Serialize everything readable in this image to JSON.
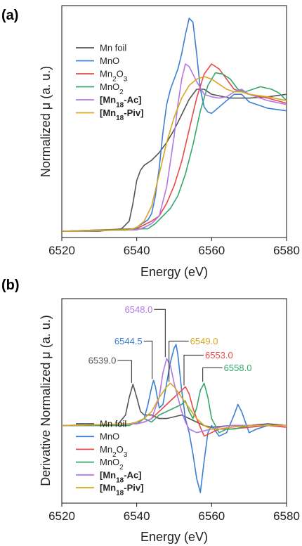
{
  "chart_data": [
    {
      "panel_label": "(a)",
      "type": "line",
      "xlabel": "Energy (eV)",
      "ylabel": "Normalized μ (a. u.)",
      "xlim": [
        6520,
        6580
      ],
      "ylim": [
        -0.05,
        1.78
      ],
      "xticks": [
        6520,
        6540,
        6560,
        6580
      ],
      "legend_position": "top-left",
      "series": [
        {
          "name": "Mn foil",
          "color": "#555555",
          "x": [
            6520,
            6530,
            6536,
            6538,
            6539,
            6540,
            6541,
            6542,
            6544,
            6546,
            6548,
            6550,
            6552,
            6554,
            6556,
            6558,
            6560,
            6565,
            6570,
            6575,
            6580
          ],
          "y": [
            0.0,
            0.0,
            0.02,
            0.08,
            0.22,
            0.4,
            0.48,
            0.52,
            0.56,
            0.62,
            0.7,
            0.8,
            0.92,
            1.04,
            1.12,
            1.12,
            1.08,
            1.05,
            1.05,
            1.06,
            1.08
          ]
        },
        {
          "name": "MnO",
          "color": "#3a7fd5",
          "x": [
            6520,
            6538,
            6540,
            6541,
            6542,
            6543,
            6544,
            6545,
            6546,
            6547,
            6548,
            6549,
            6550,
            6551,
            6552,
            6553,
            6554,
            6555,
            6556,
            6557,
            6558,
            6559,
            6560,
            6562,
            6564,
            6566,
            6568,
            6570,
            6575,
            6580
          ],
          "y": [
            0.0,
            0.01,
            0.03,
            0.05,
            0.07,
            0.09,
            0.14,
            0.28,
            0.5,
            0.78,
            1.0,
            1.12,
            1.2,
            1.28,
            1.4,
            1.55,
            1.68,
            1.65,
            1.4,
            1.12,
            0.98,
            0.94,
            0.93,
            0.98,
            1.03,
            1.08,
            1.08,
            1.02,
            0.97,
            0.95
          ]
        },
        {
          "name": "Mn2O3",
          "color": "#e84a4a",
          "x": [
            6520,
            6540,
            6542,
            6544,
            6546,
            6548,
            6550,
            6552,
            6554,
            6556,
            6558,
            6560,
            6562,
            6564,
            6566,
            6568,
            6570,
            6575,
            6580
          ],
          "y": [
            0.0,
            0.02,
            0.05,
            0.08,
            0.12,
            0.22,
            0.36,
            0.55,
            0.8,
            1.05,
            1.24,
            1.32,
            1.28,
            1.2,
            1.12,
            1.1,
            1.08,
            1.05,
            1.01
          ]
        },
        {
          "name": "MnO2",
          "color": "#34a86c",
          "x": [
            6520,
            6543,
            6545,
            6547,
            6549,
            6551,
            6553,
            6555,
            6557,
            6559,
            6561,
            6563,
            6565,
            6567,
            6569,
            6571,
            6573,
            6576,
            6578,
            6580
          ],
          "y": [
            0.0,
            0.02,
            0.06,
            0.12,
            0.18,
            0.28,
            0.45,
            0.68,
            0.95,
            1.15,
            1.25,
            1.24,
            1.2,
            1.12,
            1.1,
            1.12,
            1.14,
            1.12,
            1.09,
            1.03
          ]
        },
        {
          "name": "[Mn18-Ac]",
          "color": "#b377e6",
          "x": [
            6520,
            6540,
            6542,
            6544,
            6546,
            6548,
            6550,
            6551,
            6552,
            6553,
            6554,
            6556,
            6558,
            6560,
            6562,
            6564,
            6566,
            6568,
            6570,
            6575,
            6580
          ],
          "y": [
            0.0,
            0.01,
            0.03,
            0.06,
            0.12,
            0.35,
            0.75,
            1.0,
            1.2,
            1.32,
            1.3,
            1.18,
            1.08,
            1.06,
            1.05,
            1.06,
            1.1,
            1.12,
            1.08,
            1.03,
            1.0
          ]
        },
        {
          "name": "[Mn18-Piv]",
          "color": "#d9a520",
          "x": [
            6520,
            6538,
            6540,
            6542,
            6544,
            6546,
            6548,
            6550,
            6552,
            6554,
            6556,
            6558,
            6560,
            6562,
            6564,
            6566,
            6568,
            6570,
            6575,
            6580
          ],
          "y": [
            0.0,
            0.01,
            0.03,
            0.08,
            0.2,
            0.45,
            0.7,
            0.9,
            1.05,
            1.15,
            1.2,
            1.22,
            1.2,
            1.16,
            1.12,
            1.1,
            1.1,
            1.08,
            1.06,
            1.03
          ]
        }
      ]
    },
    {
      "panel_label": "(b)",
      "type": "line",
      "xlabel": "Energy (eV)",
      "ylabel": "Derivative Normalized μ (a. u.)",
      "xlim": [
        6520,
        6580
      ],
      "ylim": [
        -0.22,
        0.36
      ],
      "xticks": [
        6520,
        6540,
        6560,
        6580
      ],
      "legend_position": "bottom-left",
      "annotations": [
        {
          "text": "6539.0",
          "color": "#555555",
          "x": 6539.0,
          "y": 0.117
        },
        {
          "text": "6544.5",
          "color": "#3a7fd5",
          "x": 6544.5,
          "y": 0.128
        },
        {
          "text": "6548.0",
          "color": "#b377e6",
          "x": 6548.0,
          "y": 0.19
        },
        {
          "text": "6549.0",
          "color": "#d9a520",
          "x": 6549.0,
          "y": 0.12
        },
        {
          "text": "6553.0",
          "color": "#e84a4a",
          "x": 6553.0,
          "y": 0.11
        },
        {
          "text": "6558.0",
          "color": "#34a86c",
          "x": 6558.0,
          "y": 0.12
        }
      ],
      "series": [
        {
          "name": "Mn foil",
          "color": "#555555",
          "x": [
            6520,
            6530,
            6535,
            6537,
            6538,
            6539,
            6540,
            6541,
            6542,
            6544,
            6546,
            6548,
            6550,
            6552,
            6554,
            6556,
            6558,
            6560,
            6565,
            6570,
            6575,
            6580
          ],
          "y": [
            0.0,
            0.0,
            0.004,
            0.03,
            0.08,
            0.117,
            0.08,
            0.04,
            0.03,
            0.03,
            0.02,
            0.02,
            0.025,
            0.03,
            0.02,
            0.01,
            0.0,
            -0.005,
            0.0,
            0.0,
            0.005,
            0.0
          ]
        },
        {
          "name": "MnO",
          "color": "#3a7fd5",
          "x": [
            6520,
            6540,
            6542,
            6543,
            6544,
            6544.5,
            6545,
            6546,
            6547,
            6548,
            6549,
            6550,
            6550.5,
            6551,
            6552,
            6553,
            6554,
            6555,
            6556,
            6557,
            6558,
            6559,
            6560,
            6562,
            6564,
            6566,
            6567,
            6568,
            6570,
            6572,
            6575,
            6580
          ],
          "y": [
            0.0,
            0.005,
            0.02,
            0.06,
            0.11,
            0.128,
            0.11,
            0.05,
            0.06,
            0.12,
            0.18,
            0.22,
            0.23,
            0.2,
            0.1,
            0.02,
            -0.02,
            -0.08,
            -0.15,
            -0.19,
            -0.1,
            -0.02,
            0.0,
            -0.03,
            -0.02,
            0.03,
            0.06,
            0.04,
            -0.02,
            -0.01,
            0.0,
            0.0
          ]
        },
        {
          "name": "Mn2O3",
          "color": "#e84a4a",
          "x": [
            6520,
            6540,
            6542,
            6544,
            6546,
            6548,
            6550,
            6551,
            6552,
            6553,
            6554,
            6555,
            6556,
            6558,
            6560,
            6562,
            6565,
            6570,
            6575,
            6580
          ],
          "y": [
            0.0,
            0.005,
            0.01,
            0.02,
            0.04,
            0.06,
            0.08,
            0.09,
            0.1,
            0.11,
            0.09,
            0.05,
            0.02,
            -0.03,
            -0.02,
            -0.01,
            -0.01,
            -0.005,
            0.0,
            -0.005
          ]
        },
        {
          "name": "MnO2",
          "color": "#34a86c",
          "x": [
            6520,
            6538,
            6540,
            6542,
            6544,
            6546,
            6548,
            6550,
            6552,
            6553,
            6554,
            6555,
            6556,
            6557,
            6558,
            6559,
            6560,
            6562,
            6564,
            6566,
            6568,
            6570,
            6575,
            6580
          ],
          "y": [
            0.0,
            0.0,
            0.01,
            0.02,
            0.01,
            0.03,
            0.04,
            0.05,
            0.06,
            0.07,
            0.04,
            0.02,
            0.05,
            0.1,
            0.12,
            0.08,
            0.02,
            -0.02,
            -0.01,
            -0.01,
            -0.005,
            0.0,
            0.0,
            0.0
          ]
        },
        {
          "name": "[Mn18-Ac]",
          "color": "#b377e6",
          "x": [
            6520,
            6540,
            6542,
            6544,
            6546,
            6547,
            6548,
            6549,
            6550,
            6551,
            6552,
            6553,
            6554,
            6555,
            6556,
            6558,
            6560,
            6562,
            6565,
            6570,
            6575,
            6580
          ],
          "y": [
            0.0,
            0.005,
            0.01,
            0.02,
            0.08,
            0.15,
            0.19,
            0.17,
            0.12,
            0.08,
            0.04,
            0.01,
            -0.01,
            -0.015,
            -0.02,
            -0.015,
            -0.01,
            -0.005,
            0.0,
            0.0,
            0.0,
            0.0
          ]
        },
        {
          "name": "[Mn18-Piv]",
          "color": "#d9a520",
          "x": [
            6520,
            6538,
            6540,
            6542,
            6544,
            6546,
            6548,
            6549,
            6550,
            6552,
            6554,
            6556,
            6558,
            6560,
            6562,
            6565,
            6570,
            6575,
            6580
          ],
          "y": [
            0.0,
            0.005,
            0.01,
            0.02,
            0.04,
            0.08,
            0.11,
            0.12,
            0.11,
            0.08,
            0.05,
            0.02,
            0.0,
            -0.01,
            -0.01,
            -0.005,
            0.0,
            0.0,
            0.0
          ]
        }
      ]
    }
  ]
}
